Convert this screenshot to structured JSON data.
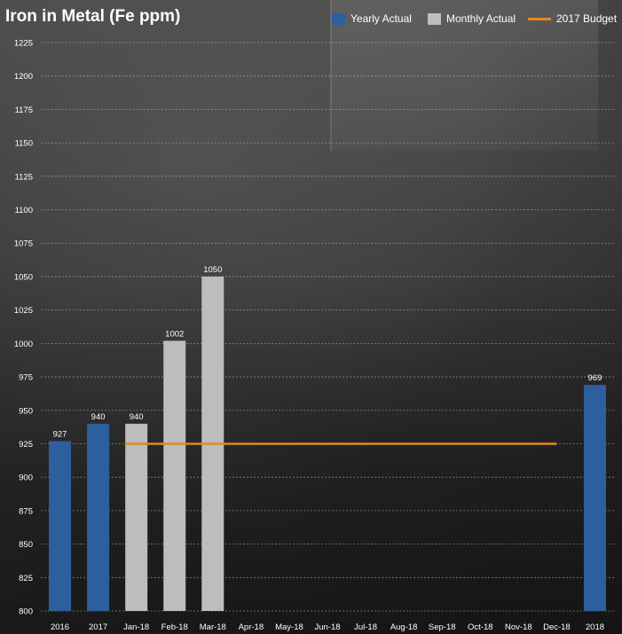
{
  "chart_data": {
    "type": "bar",
    "title": "Iron in Metal (Fe ppm)",
    "categories": [
      "2016",
      "2017",
      "Jan-18",
      "Feb-18",
      "Mar-18",
      "Apr-18",
      "May-18",
      "Jun-18",
      "Jul-18",
      "Aug-18",
      "Sep-18",
      "Oct-18",
      "Nov-18",
      "Dec-18",
      "2018"
    ],
    "series": [
      {
        "name": "Yearly Actual",
        "type": "bar",
        "color": "#2d5f9e",
        "values": [
          927,
          940,
          null,
          null,
          null,
          null,
          null,
          null,
          null,
          null,
          null,
          null,
          null,
          null,
          969
        ]
      },
      {
        "name": "Monthly Actual",
        "type": "bar",
        "color": "#bdbdbd",
        "values": [
          null,
          null,
          940,
          1002,
          1050,
          null,
          null,
          null,
          null,
          null,
          null,
          null,
          null,
          null,
          null
        ]
      },
      {
        "name": "2017 Budget",
        "type": "line",
        "color": "#e08a1e",
        "values": [
          null,
          null,
          925,
          925,
          925,
          925,
          925,
          925,
          925,
          925,
          925,
          925,
          925,
          925,
          null
        ]
      }
    ],
    "data_labels": [
      "927",
      "940",
      "940",
      "1002",
      "1050",
      "969"
    ],
    "yticks": [
      800,
      825,
      850,
      875,
      900,
      925,
      950,
      975,
      1000,
      1025,
      1050,
      1075,
      1100,
      1125,
      1150,
      1175,
      1200,
      1225
    ],
    "ylim": [
      800,
      1225
    ],
    "grid": true,
    "legend_position": "top-right"
  }
}
